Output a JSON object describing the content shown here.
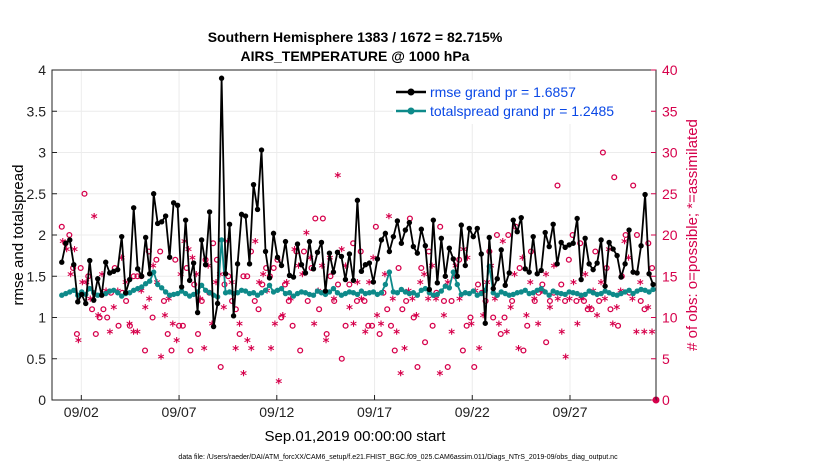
{
  "chart_data": {
    "type": "line",
    "title": "Southern Hemisphere 1383 / 1672 = 82.715%",
    "subtitle": "AIRS_TEMPERATURE @ 1000 hPa",
    "xlabel": "Sep.01,2019 00:00:00 start",
    "ylabel": "rmse and totalspread",
    "ylabel_right": "# of obs: o=possible; *=assimilated",
    "xlim": [
      0.5,
      31.4
    ],
    "ylim": [
      0,
      4
    ],
    "ylim_right": [
      0,
      40
    ],
    "yticks": [
      "0",
      "0.5",
      "1",
      "1.5",
      "2",
      "2.5",
      "3",
      "3.5",
      "4"
    ],
    "yticks_right": [
      "0",
      "5",
      "10",
      "15",
      "20",
      "25",
      "30",
      "35",
      "40"
    ],
    "xticks": [
      {
        "day": 2,
        "label": "09/02"
      },
      {
        "day": 7,
        "label": "09/07"
      },
      {
        "day": 12,
        "label": "09/12"
      },
      {
        "day": 17,
        "label": "09/17"
      },
      {
        "day": 22,
        "label": "09/22"
      },
      {
        "day": 27,
        "label": "09/27"
      }
    ],
    "legend": [
      {
        "label": "rmse grand pr = 1.6857",
        "color": "#000000"
      },
      {
        "label": "totalspread grand pr = 1.2485",
        "color": "#0e8a8a"
      }
    ],
    "legend_position": "top-right",
    "grid": true,
    "series": [
      {
        "name": "rmse",
        "color": "#000000",
        "marker": "dot",
        "values": [
          1.67,
          1.9,
          1.94,
          1.64,
          1.19,
          1.28,
          1.17,
          1.69,
          1.21,
          1.47,
          1.27,
          1.67,
          1.54,
          1.56,
          1.58,
          1.98,
          1.3,
          1.46,
          2.33,
          1.59,
          1.5,
          1.97,
          1.53,
          2.5,
          2.14,
          2.16,
          2.23,
          1.73,
          2.39,
          2.36,
          1.37,
          2.18,
          1.45,
          1.66,
          1.06,
          1.94,
          1.64,
          2.28,
          0.89,
          1.17,
          3.9,
          1.53,
          2.13,
          1.02,
          1.65,
          2.25,
          2.23,
          1.65,
          2.61,
          2.31,
          3.03,
          1.8,
          1.48,
          2.02,
          1.73,
          1.63,
          1.92,
          1.51,
          1.49,
          1.89,
          1.64,
          1.54,
          1.92,
          1.59,
          1.79,
          1.91,
          1.32,
          1.78,
          1.55,
          1.79,
          1.74,
          1.46,
          1.77,
          1.45,
          2.42,
          1.56,
          1.64,
          1.66,
          1.43,
          1.71,
          1.94,
          2.02,
          1.8,
          1.98,
          2.17,
          1.9,
          2.06,
          2.15,
          1.86,
          1.78,
          2.07,
          1.87,
          1.34,
          2.18,
          1.42,
          1.96,
          1.5,
          1.84,
          1.71,
          1.5,
          2.12,
          1.63,
          2.08,
          1.98,
          2.08,
          1.77,
          0.93,
          1.97,
          1.35,
          1.47,
          1.82,
          1.39,
          1.54,
          2.18,
          2.04,
          2.21,
          1.59,
          1.55,
          1.98,
          1.53,
          1.57,
          2.03,
          1.86,
          2.13,
          1.65,
          1.91,
          1.85,
          1.88,
          1.9,
          2.2,
          1.46,
          1.96,
          1.65,
          1.58,
          1.66,
          1.94,
          1.38,
          1.91,
          1.83,
          1.75,
          1.49,
          1.65,
          2.06,
          1.55,
          1.54,
          1.87,
          2.49,
          1.53,
          1.4
        ]
      },
      {
        "name": "totalspread",
        "color": "#0e8a8a",
        "marker": "dot",
        "values": [
          1.27,
          1.29,
          1.31,
          1.33,
          1.27,
          1.31,
          1.28,
          1.35,
          1.3,
          1.27,
          1.28,
          1.29,
          1.32,
          1.33,
          1.3,
          1.26,
          1.29,
          1.3,
          1.33,
          1.35,
          1.37,
          1.41,
          1.44,
          1.55,
          1.4,
          1.36,
          1.31,
          1.27,
          1.28,
          1.29,
          1.32,
          1.29,
          1.26,
          1.28,
          1.31,
          1.39,
          1.33,
          1.3,
          1.27,
          1.25,
          1.94,
          1.3,
          1.31,
          1.29,
          1.3,
          1.33,
          1.32,
          1.29,
          1.3,
          1.27,
          1.3,
          1.33,
          1.39,
          1.31,
          1.33,
          1.35,
          1.29,
          1.3,
          1.26,
          1.29,
          1.31,
          1.3,
          1.28,
          1.27,
          1.32,
          1.3,
          1.28,
          1.31,
          1.35,
          1.3,
          1.27,
          1.29,
          1.31,
          1.3,
          1.28,
          1.32,
          1.29,
          1.3,
          1.31,
          1.28,
          1.3,
          1.4,
          1.55,
          1.31,
          1.3,
          1.34,
          1.31,
          1.29,
          1.3,
          1.27,
          1.33,
          1.35,
          1.3,
          1.27,
          1.28,
          1.32,
          1.38,
          1.36,
          1.55,
          1.4,
          1.28,
          1.3,
          1.29,
          1.32,
          1.27,
          1.29,
          1.33,
          1.62,
          1.3,
          1.27,
          1.31,
          1.29,
          1.27,
          1.28,
          1.3,
          1.31,
          1.33,
          1.29,
          1.3,
          1.33,
          1.35,
          1.31,
          1.27,
          1.32,
          1.3,
          1.29,
          1.28,
          1.31,
          1.3,
          1.29,
          1.27,
          1.28,
          1.32,
          1.3,
          1.28,
          1.29,
          1.32,
          1.3,
          1.28,
          1.27,
          1.29,
          1.31,
          1.33,
          1.29,
          1.32,
          1.34,
          1.33,
          1.31,
          1.34
        ]
      }
    ],
    "obs_possible": [
      21,
      19,
      20,
      16,
      8,
      16,
      25,
      15,
      11,
      8,
      10,
      11,
      10,
      13,
      16,
      9,
      13,
      12,
      9,
      15,
      15,
      15,
      6,
      18,
      10,
      17,
      18,
      12,
      8,
      6,
      17,
      9,
      9,
      16,
      6,
      14,
      8,
      12,
      17,
      13,
      19,
      17,
      4,
      14,
      15,
      12,
      11,
      8,
      15,
      15,
      18,
      12,
      11,
      14,
      16,
      15,
      16,
      17,
      10,
      14,
      12,
      9,
      18,
      6,
      18,
      12,
      16,
      22,
      11,
      22,
      8,
      15,
      12,
      14,
      5,
      9,
      14,
      19,
      12,
      18,
      12,
      9,
      9,
      21,
      8,
      13,
      11,
      9,
      6,
      16,
      11,
      12,
      22,
      10,
      4,
      16,
      7,
      18,
      9,
      13,
      21,
      12,
      4,
      12,
      15,
      17,
      6,
      9,
      10,
      4,
      14,
      13,
      12,
      18,
      10,
      20,
      8,
      10,
      20,
      12,
      21,
      16,
      6,
      9,
      18,
      12,
      13,
      14,
      7,
      12,
      13,
      26,
      14,
      12,
      17,
      20,
      12,
      19,
      12,
      11,
      11,
      18,
      12,
      30,
      16,
      11,
      27,
      9,
      15,
      20,
      13,
      26,
      20,
      12,
      11,
      19,
      16
    ],
    "obs_assimilated": [
      19,
      18,
      15,
      18,
      7,
      14,
      14,
      12,
      22,
      10,
      15,
      13,
      8,
      11,
      13,
      17,
      14,
      9,
      8,
      8,
      13,
      11,
      12,
      16,
      14,
      5,
      10,
      12,
      9,
      7,
      15,
      19,
      18,
      17,
      15,
      12,
      6,
      16,
      9,
      14,
      15,
      11,
      19,
      14,
      6,
      9,
      3,
      7,
      6,
      19,
      14,
      15,
      13,
      6,
      9,
      2,
      10,
      14,
      12,
      18,
      16,
      15,
      20,
      17,
      9,
      13,
      16,
      7,
      17,
      12,
      27,
      18,
      16,
      11,
      9,
      14,
      12,
      8,
      14,
      17,
      10,
      9,
      15,
      22,
      12,
      8,
      3,
      6,
      13,
      12,
      10,
      14,
      15,
      12,
      16,
      12,
      3,
      10,
      14,
      8,
      16,
      12,
      18,
      17,
      9,
      13,
      6,
      10,
      14,
      16,
      12,
      9,
      19,
      8,
      11,
      15,
      6,
      17,
      10,
      14,
      12,
      9,
      13,
      15,
      11,
      16,
      12,
      8,
      5,
      12,
      14,
      9,
      12,
      15,
      11,
      13,
      10,
      14,
      12,
      18,
      9,
      11,
      13,
      19,
      17,
      12,
      8,
      14,
      8,
      11,
      8
    ]
  },
  "footnote": "data file: /Users/raeder/DAI/ATM_forcXX/CAM6_setup/f.e21.FHIST_BGC.f09_025.CAM6assim.011/Diags_NTrS_2019-09/obs_diag_output.nc"
}
